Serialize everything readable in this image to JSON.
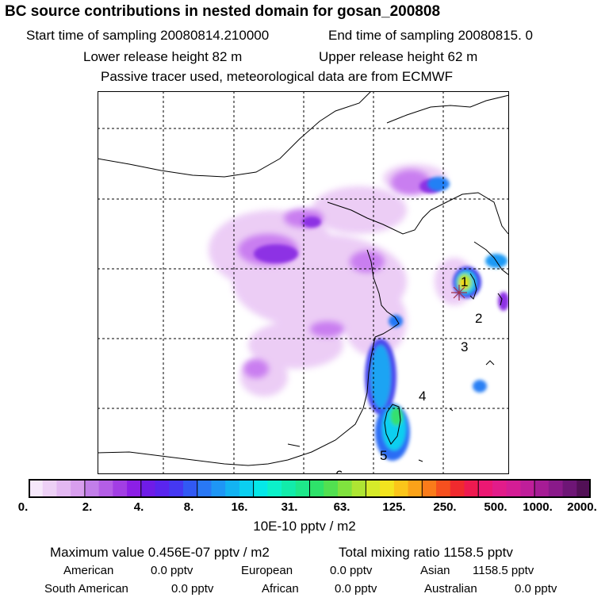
{
  "header": {
    "title": "BC  source contributions in nested domain for gosan_200808",
    "start_label": "Start time of sampling 20080814.210000",
    "end_label": "End time of sampling 20080815.     0",
    "lower_label": "Lower release height   82 m",
    "upper_label": "Upper release height   62 m",
    "note": "Passive tracer used, meteorological data are from ECMWF"
  },
  "map": {
    "region": "East Asia (China, Korea, Japan)",
    "receptor_marker": "1",
    "trajectory_labels": [
      "1",
      "2",
      "3",
      "4",
      "5",
      "6"
    ]
  },
  "colorbar": {
    "ticks": [
      "0.",
      "2.",
      "4.",
      "8.",
      "16.",
      "31.",
      "63.",
      "125.",
      "250.",
      "500.",
      "1000.",
      "2000."
    ],
    "colors": [
      "#f6e8fb",
      "#edd0f6",
      "#e3b8f2",
      "#d89eee",
      "#c27ee9",
      "#b45ee6",
      "#a23ee4",
      "#8c1fe6",
      "#6f1ce8",
      "#5a25ee",
      "#4538f2",
      "#3159f4",
      "#2978f5",
      "#1e96f5",
      "#13b3f2",
      "#0bcff0",
      "#05e8e8",
      "#0cf1c9",
      "#12ecaa",
      "#1ee88a",
      "#2ee26a",
      "#52e050",
      "#80e23e",
      "#aee533",
      "#d6ea2a",
      "#f3e41f",
      "#fbc51a",
      "#fba219",
      "#fa7b1a",
      "#f6501f",
      "#f02a2e",
      "#ee1a50",
      "#ec1873",
      "#e21c8a",
      "#d41d95",
      "#bf1e9a",
      "#a61c95",
      "#8a1a8a",
      "#6e1676",
      "#521056"
    ]
  },
  "units": "10E-10 pptv / m2",
  "stats": {
    "max_label": "Maximum value  0.456E-07 pptv / m2",
    "total_label": "Total mixing ratio     1158.5 pptv"
  },
  "regions": [
    {
      "name": "American",
      "value": "0.0 pptv"
    },
    {
      "name": "European",
      "value": "0.0 pptv"
    },
    {
      "name": "Asian",
      "value": "1158.5 pptv"
    },
    {
      "name": "South American",
      "value": "0.0 pptv"
    },
    {
      "name": "African",
      "value": "0.0 pptv"
    },
    {
      "name": "Australian",
      "value": "0.0 pptv"
    }
  ]
}
